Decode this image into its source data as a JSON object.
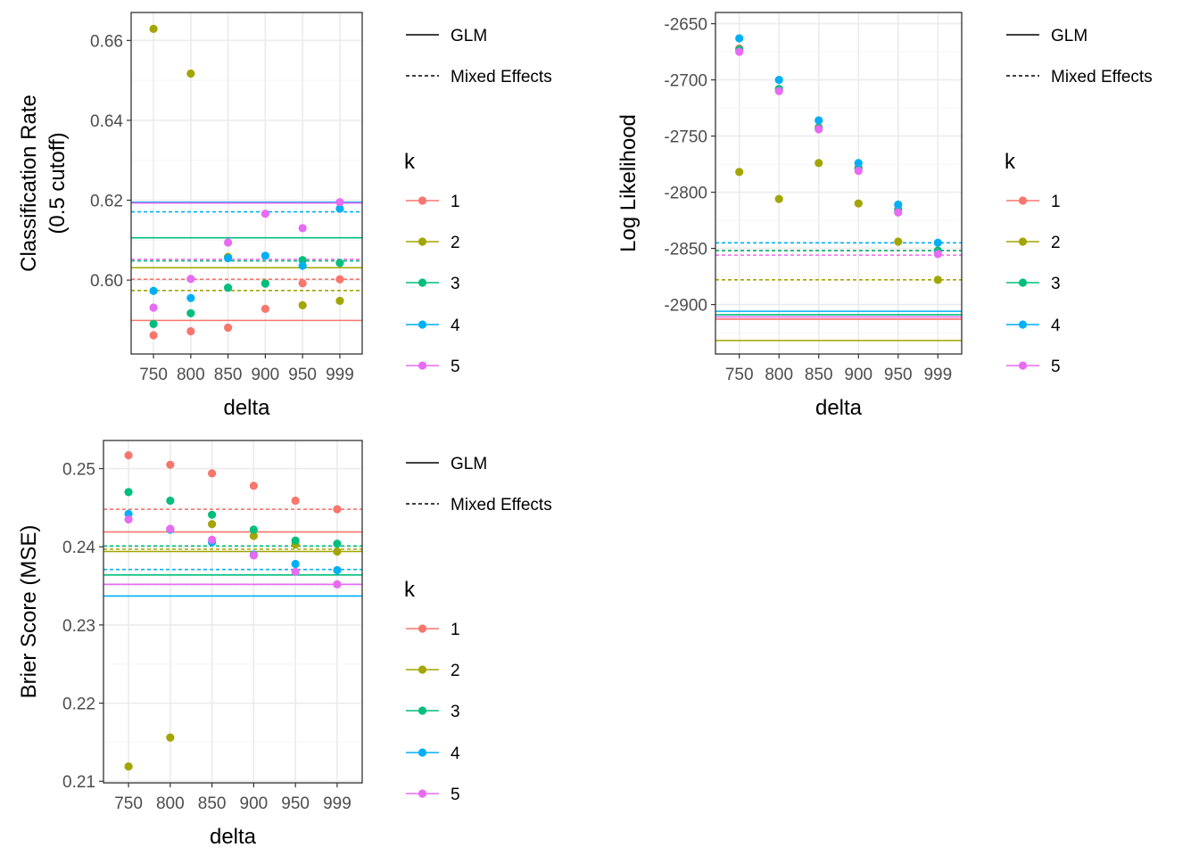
{
  "colors": {
    "k1": "#F8766D",
    "k2": "#A3A500",
    "k3": "#00BF7D",
    "k4": "#00B0F6",
    "k5": "#E76BF3",
    "grid_major": "#ebebeb",
    "grid_minor": "#f5f5f5",
    "panel_border": "#333333",
    "tick_text": "#4d4d4d"
  },
  "chart_data": [
    {
      "type": "scatter",
      "xlabel": "delta",
      "ylabel_lines": [
        "Classification Rate",
        "(0.5 cutoff)"
      ],
      "categories": [
        "750",
        "800",
        "850",
        "900",
        "950",
        "999"
      ],
      "ylim": [
        0.5815,
        0.667
      ],
      "yticks": [
        0.6,
        0.62,
        0.64,
        0.66
      ],
      "ytick_labels": [
        "0.60",
        "0.62",
        "0.64",
        "0.66"
      ],
      "series": [
        {
          "name": "1",
          "values": [
            0.5862,
            0.5872,
            0.5881,
            0.5928,
            0.5992,
            0.6002
          ],
          "glm": 0.5899,
          "mixed": 0.6002
        },
        {
          "name": "2",
          "values": [
            0.6629,
            0.6517,
            0.6058,
            0.5992,
            0.5937,
            0.5948
          ],
          "glm": 0.6031,
          "mixed": 0.5974
        },
        {
          "name": "3",
          "values": [
            0.589,
            0.5917,
            0.5981,
            0.5991,
            0.605,
            0.6043
          ],
          "glm": 0.6106,
          "mixed": 0.6048
        },
        {
          "name": "4",
          "values": [
            0.5973,
            0.5955,
            0.6055,
            0.6061,
            0.6036,
            0.6179
          ],
          "glm": 0.6195,
          "mixed": 0.6171
        },
        {
          "name": "5",
          "values": [
            0.5931,
            0.6003,
            0.6094,
            0.6166,
            0.613,
            0.6195
          ],
          "glm": 0.6193,
          "mixed": 0.6052
        }
      ]
    },
    {
      "type": "scatter",
      "xlabel": "delta",
      "ylabel_lines": [
        "Log Likelihood"
      ],
      "categories": [
        "750",
        "800",
        "850",
        "900",
        "950",
        "999"
      ],
      "ylim": [
        -2944,
        -2640
      ],
      "yticks": [
        -2900,
        -2850,
        -2800,
        -2750,
        -2700,
        -2650
      ],
      "ytick_labels": [
        "-2900",
        "-2850",
        "-2800",
        "-2750",
        "-2700",
        "-2650"
      ],
      "series": [
        {
          "name": "1",
          "values": [
            -2672,
            -2709,
            -2742,
            -2778,
            -2815,
            -2852
          ],
          "glm": -2913,
          "mixed": -2852
        },
        {
          "name": "2",
          "values": [
            -2782,
            -2806,
            -2774,
            -2810,
            -2844,
            -2878
          ],
          "glm": -2932,
          "mixed": -2878
        },
        {
          "name": "3",
          "values": [
            -2673,
            -2708,
            -2743,
            -2779,
            -2816,
            -2852
          ],
          "glm": -2909,
          "mixed": -2852
        },
        {
          "name": "4",
          "values": [
            -2663,
            -2700,
            -2736,
            -2774,
            -2811,
            -2845
          ],
          "glm": -2906,
          "mixed": -2845
        },
        {
          "name": "5",
          "values": [
            -2675,
            -2710,
            -2744,
            -2781,
            -2818,
            -2855
          ],
          "glm": -2911,
          "mixed": -2856
        }
      ]
    },
    {
      "type": "scatter",
      "xlabel": "delta",
      "ylabel_lines": [
        "Brier Score (MSE)"
      ],
      "categories": [
        "750",
        "800",
        "850",
        "900",
        "950",
        "999"
      ],
      "ylim": [
        0.2098,
        0.2536
      ],
      "yticks": [
        0.21,
        0.22,
        0.23,
        0.24,
        0.25
      ],
      "ytick_labels": [
        "0.21",
        "0.22",
        "0.23",
        "0.24",
        "0.25"
      ],
      "series": [
        {
          "name": "1",
          "values": [
            0.2517,
            0.2505,
            0.2494,
            0.2478,
            0.2459,
            0.2448
          ],
          "glm": 0.2419,
          "mixed": 0.2448
        },
        {
          "name": "2",
          "values": [
            0.2119,
            0.2156,
            0.2429,
            0.2414,
            0.2403,
            0.2394
          ],
          "glm": 0.2394,
          "mixed": 0.2397
        },
        {
          "name": "3",
          "values": [
            0.247,
            0.2459,
            0.2441,
            0.2422,
            0.2408,
            0.2404
          ],
          "glm": 0.2364,
          "mixed": 0.2401
        },
        {
          "name": "4",
          "values": [
            0.2442,
            0.2422,
            0.2406,
            0.239,
            0.2378,
            0.237
          ],
          "glm": 0.2337,
          "mixed": 0.2371
        },
        {
          "name": "5",
          "values": [
            0.2435,
            0.2423,
            0.2409,
            0.2389,
            0.2368,
            0.2352
          ],
          "glm": 0.2352,
          "mixed": 0.2352
        }
      ]
    }
  ],
  "legend": {
    "linetype": [
      "GLM",
      "Mixed Effects"
    ],
    "k_title": "k",
    "k_labels": [
      "1",
      "2",
      "3",
      "4",
      "5"
    ]
  }
}
